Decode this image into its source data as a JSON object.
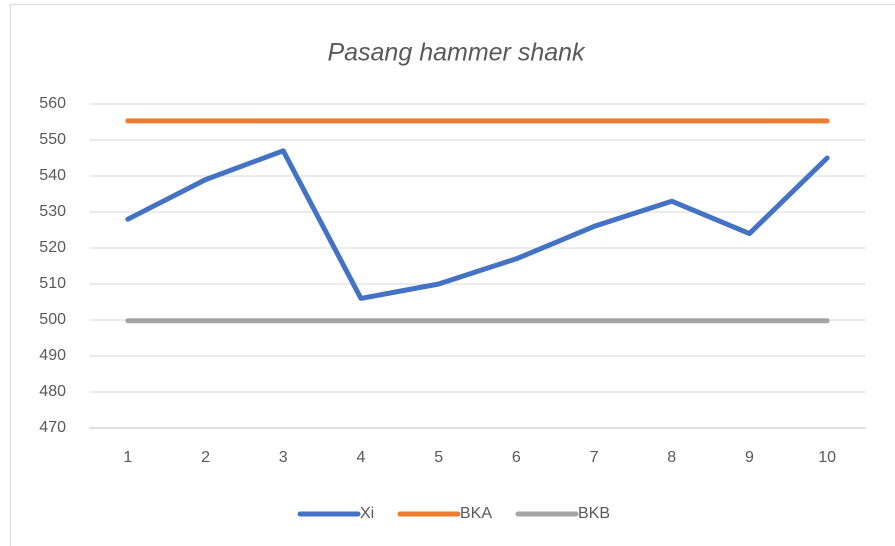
{
  "chart_data": {
    "type": "line",
    "title": "Pasang hammer shank",
    "categories": [
      1,
      2,
      3,
      4,
      5,
      6,
      7,
      8,
      9,
      10
    ],
    "series": [
      {
        "name": "Xi",
        "color": "#4472c4",
        "values": [
          528,
          539,
          547,
          506,
          510,
          517,
          526,
          533,
          524,
          545
        ]
      },
      {
        "name": "BKA",
        "color": "#ed7d31",
        "values": [
          555.3,
          555.3,
          555.3,
          555.3,
          555.3,
          555.3,
          555.3,
          555.3,
          555.3,
          555.3
        ]
      },
      {
        "name": "BKB",
        "color": "#a5a5a5",
        "values": [
          499.8,
          499.8,
          499.8,
          499.8,
          499.8,
          499.8,
          499.8,
          499.8,
          499.8,
          499.8
        ]
      }
    ],
    "ylim": [
      470,
      560
    ],
    "yticks": [
      470,
      480,
      490,
      500,
      510,
      520,
      530,
      540,
      550,
      560
    ],
    "grid": true,
    "legend": "bottom"
  }
}
